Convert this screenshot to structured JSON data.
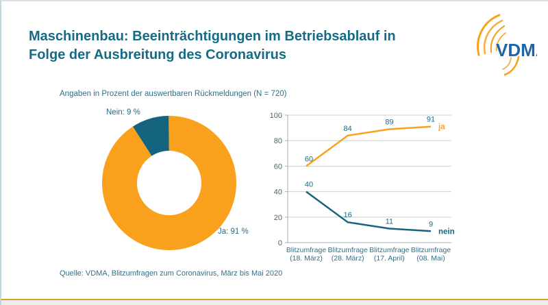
{
  "slide": {
    "title_lines": [
      "Maschinenbau: Beeinträchtigungen im Betriebsablauf in",
      "Folge der Ausbreitung des Coronavirus"
    ],
    "subtitle": "Angaben in Prozent der auswertbaren Rückmeldungen (N = 720)",
    "source": "Quelle: VDMA, Blitzumfragen zum Coronavirus, März bis Mai 2020",
    "logo_text": "VDMA"
  },
  "colors": {
    "title_teal": "#156b87",
    "text_teal": "#2f7089",
    "orange": "#F9A11C",
    "dark_teal": "#14637F",
    "vdma_blue": "#1D64A8",
    "gridline": "#cfcfcf",
    "axis": "#9fb3ba",
    "bottom_rule_gold": "#d9a02b"
  },
  "chart_data": [
    {
      "type": "pie",
      "subtype": "donut",
      "title": "",
      "labels": [
        "Ja",
        "Nein"
      ],
      "values": [
        91,
        9
      ],
      "slice_labels": [
        "Ja: 91 %",
        "Nein: 9 %"
      ],
      "colors": [
        "#F9A11C",
        "#14637F"
      ],
      "start_angle_deg": 0,
      "direction": "clockwise-from-12-oclock"
    },
    {
      "type": "line",
      "title": "",
      "xlabel": "",
      "ylabel": "",
      "categories": [
        [
          "Blitzumfrage",
          "(18. März)"
        ],
        [
          "Blitzumfrage",
          "(28. März)"
        ],
        [
          "Blitzumfrage",
          "(17. April)"
        ],
        [
          "Blitzumfrage",
          "(08. Mai)"
        ]
      ],
      "series": [
        {
          "name": "ja",
          "values": [
            60,
            84,
            89,
            91
          ],
          "color": "#F9A11C"
        },
        {
          "name": "nein",
          "values": [
            40,
            16,
            11,
            9
          ],
          "color": "#14637F"
        }
      ],
      "ylim": [
        0,
        100
      ],
      "yticks": [
        0,
        20,
        40,
        60,
        80,
        100
      ],
      "grid": true,
      "point_labels": true,
      "legend_position": "line-end"
    }
  ]
}
